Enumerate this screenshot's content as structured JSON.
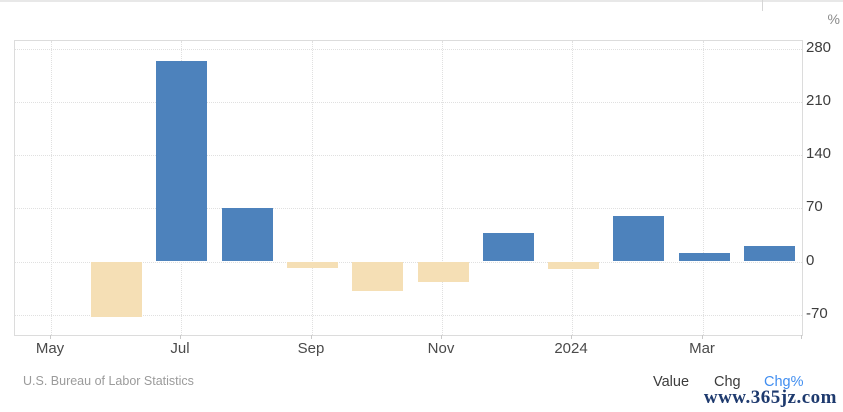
{
  "header": {
    "unit_label": "%"
  },
  "chart_data": {
    "type": "bar",
    "x": [
      "Jun 2023",
      "Jul 2023",
      "Aug 2023",
      "Sep 2023",
      "Oct 2023",
      "Nov 2023",
      "Dec 2023",
      "Jan 2024",
      "Feb 2024",
      "Mar 2024",
      "Apr 2024"
    ],
    "values": [
      -73,
      265,
      71,
      -8,
      -39,
      -27,
      38,
      -10,
      60,
      11,
      20
    ],
    "title": "",
    "xlabel": "",
    "ylabel": "%",
    "ylim": [
      -97,
      291
    ],
    "yticks": [
      280,
      210,
      140,
      70,
      0,
      -70
    ],
    "xtick_labels": [
      "May",
      "Jul",
      "Sep",
      "Nov",
      "2024",
      "Mar"
    ],
    "grid": "dotted",
    "positive_color": "#4d82bc",
    "negative_color": "#f5dfb5",
    "legend_position": "none"
  },
  "footer": {
    "source": "U.S. Bureau of Labor Statistics",
    "toggles": [
      {
        "label": "Value",
        "active": false
      },
      {
        "label": "Chg",
        "active": false
      },
      {
        "label": "Chg%",
        "active": true
      }
    ],
    "active_toggle_color": "#418ef0",
    "watermark": "www.365jz.com"
  }
}
